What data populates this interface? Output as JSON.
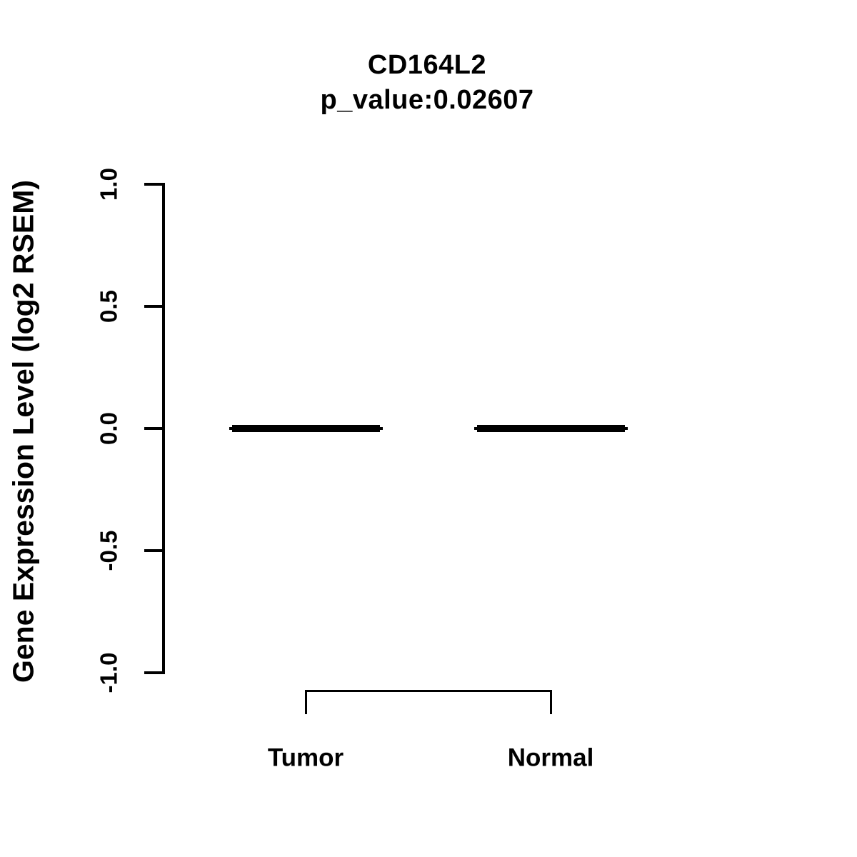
{
  "page": {
    "background": "#ffffff"
  },
  "chart_data": {
    "type": "boxplot",
    "title": "CD164L2",
    "subtitle": "p_value:0.02607",
    "ylabel": "Gene Expression Level (log2 RSEM)",
    "xlabel": "",
    "categories": [
      "Tumor",
      "Normal"
    ],
    "groups": [
      {
        "label": "Tumor",
        "median": 0.0,
        "q1": 0.0,
        "q3": 0.0,
        "whisker_low": 0.0,
        "whisker_high": 0.0
      },
      {
        "label": "Normal",
        "median": 0.0,
        "q1": 0.0,
        "q3": 0.0,
        "whisker_low": 0.0,
        "whisker_high": 0.0
      }
    ],
    "ylim": [
      -1.0,
      1.0
    ],
    "yticks": [
      1.0,
      0.5,
      0.0,
      -0.5,
      -1.0
    ],
    "grid": false,
    "legend": "none",
    "colors": {
      "foreground": "#000000",
      "background": "#ffffff"
    }
  }
}
